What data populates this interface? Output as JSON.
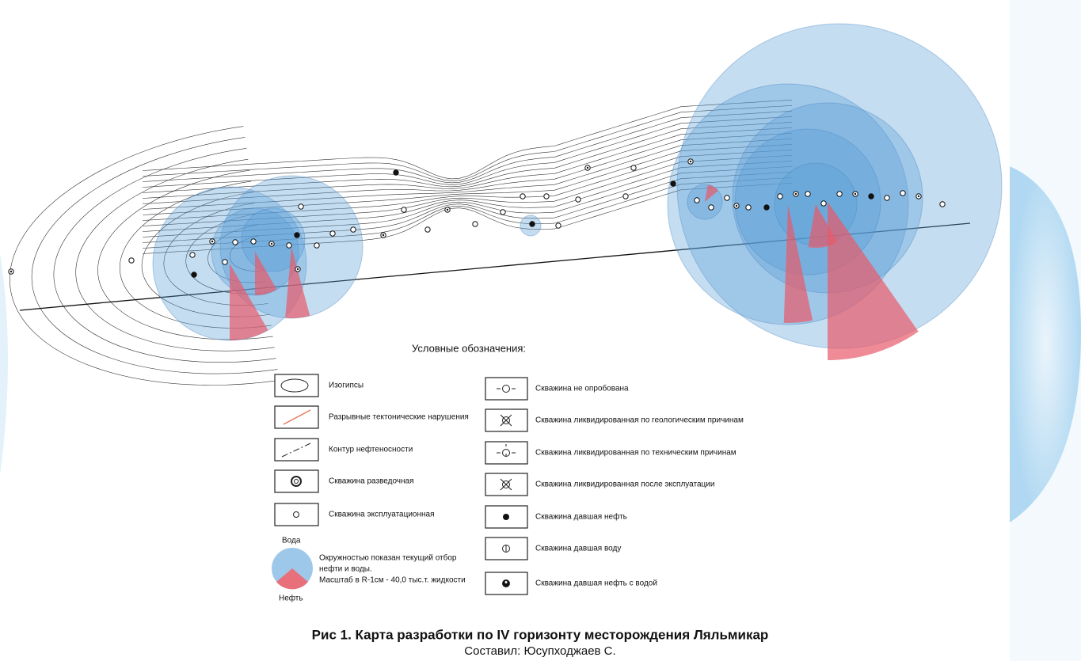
{
  "legend": {
    "title": "Условные обозначения:",
    "left": [
      "Изогипсы",
      "Разрывные тектонические нарушения",
      "Контур нефтеносности",
      "Скважина разведочная",
      "Скважина эксплуатационная"
    ],
    "water": "Вода",
    "oil": "Нефть",
    "circle_note": [
      "Окружностью показан текущий отбор",
      "нефти и воды.",
      "Масштаб в R-1см - 40,0 тыс.т. жидкости"
    ],
    "right": [
      "Скважина не опробована",
      "Скважина ликвидированная по геологическим причинам",
      "Скважина ликвидированная по техническим причинам",
      "Скважина ликвидированная после эксплуатации",
      "Скважина давшая нефть",
      "Скважина давшая воду",
      "Скважина давшая нефть с водой"
    ]
  },
  "caption": {
    "title": "Рис 1. Карта разработки по IV горизонту месторождения Ляльмикар",
    "author": "Составил: Юсупходжаев С."
  }
}
